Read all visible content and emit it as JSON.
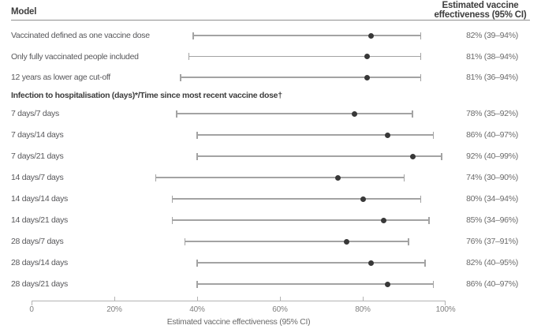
{
  "header": {
    "model_label": "Model",
    "estimate_label": "Estimated vaccine effectiveness (95% CI)"
  },
  "chart_data": {
    "type": "forest",
    "title": "",
    "xlabel": "Estimated vaccine effectiveness (95% CI)",
    "xlim": [
      0,
      100
    ],
    "unit": "%",
    "grid": false,
    "x_tick_values": [
      0,
      20,
      40,
      60,
      80,
      100
    ],
    "x_tick_labels": [
      "0",
      "20%",
      "40%",
      "60%",
      "80%",
      "100%"
    ],
    "groups": [
      {
        "header": "",
        "rows": [
          {
            "label": "Vaccinated defined as one vaccine dose",
            "estimate": 82,
            "ci_low": 39,
            "ci_high": 94,
            "display": "82% (39–94%)"
          },
          {
            "label": "Only fully vaccinated people included",
            "estimate": 81,
            "ci_low": 38,
            "ci_high": 94,
            "display": "81% (38–94%)"
          },
          {
            "label": "12 years as lower age cut-off",
            "estimate": 81,
            "ci_low": 36,
            "ci_high": 94,
            "display": "81% (36–94%)"
          }
        ]
      },
      {
        "header": "Infection to hospitalisation (days)*/Time since most recent vaccine dose†",
        "rows": [
          {
            "label": "7 days/7 days",
            "estimate": 78,
            "ci_low": 35,
            "ci_high": 92,
            "display": "78% (35–92%)"
          },
          {
            "label": "7 days/14 days",
            "estimate": 86,
            "ci_low": 40,
            "ci_high": 97,
            "display": "86% (40–97%)"
          },
          {
            "label": "7 days/21 days",
            "estimate": 92,
            "ci_low": 40,
            "ci_high": 99,
            "display": "92% (40–99%)"
          },
          {
            "label": "14 days/7 days",
            "estimate": 74,
            "ci_low": 30,
            "ci_high": 90,
            "display": "74% (30–90%)"
          },
          {
            "label": "14 days/14 days",
            "estimate": 80,
            "ci_low": 34,
            "ci_high": 94,
            "display": "80% (34–94%)"
          },
          {
            "label": "14 days/21 days",
            "estimate": 85,
            "ci_low": 34,
            "ci_high": 96,
            "display": "85% (34–96%)"
          },
          {
            "label": "28 days/7 days",
            "estimate": 76,
            "ci_low": 37,
            "ci_high": 91,
            "display": "76% (37–91%)"
          },
          {
            "label": "28 days/14 days",
            "estimate": 82,
            "ci_low": 40,
            "ci_high": 95,
            "display": "82% (40–95%)"
          },
          {
            "label": "28 days/21 days",
            "estimate": 86,
            "ci_low": 40,
            "ci_high": 97,
            "display": "86% (40–97%)"
          }
        ]
      }
    ]
  },
  "colors": {
    "marker": "#383838",
    "ci_line": "#a3a3a3",
    "axis_line": "#b3b3b3",
    "label_text": "#58585b",
    "header_text": "#3d3d3d",
    "value_text": "#6b6b6b",
    "tick_text": "#7f7f7f",
    "rule": "#8f8f8f"
  }
}
